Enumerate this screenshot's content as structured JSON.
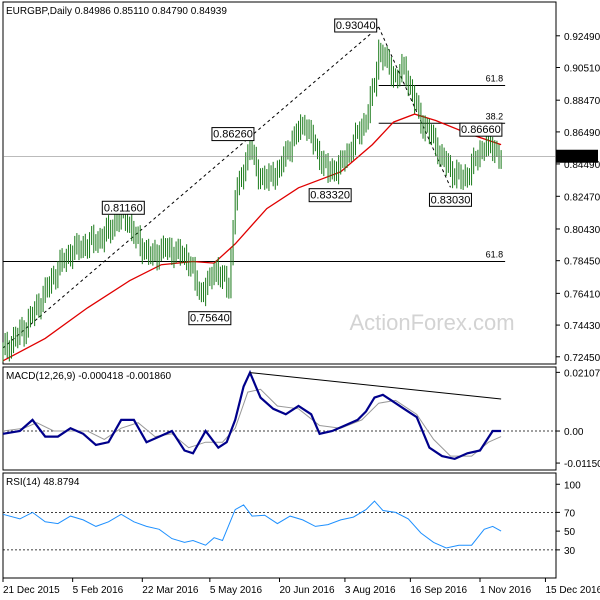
{
  "chart_data": {
    "type": "candlestick",
    "price_panel": {
      "title": "EURGBP,Daily  0.84986 0.85110 0.84790 0.84939",
      "ylim": [
        0.72,
        0.946
      ],
      "y_ticks": [
        "0.92490",
        "0.90510",
        "0.88470",
        "0.86490",
        "0.84490",
        "0.82470",
        "0.80430",
        "0.78450",
        "0.76410",
        "0.74430",
        "0.72450"
      ],
      "current_price": "0.84939",
      "close_path": [
        [
          0,
          0.728
        ],
        [
          10,
          0.742
        ],
        [
          18,
          0.76
        ],
        [
          26,
          0.78
        ],
        [
          32,
          0.79
        ],
        [
          40,
          0.795
        ],
        [
          48,
          0.8
        ],
        [
          54,
          0.81
        ],
        [
          58,
          0.813
        ],
        [
          62,
          0.8
        ],
        [
          66,
          0.793
        ],
        [
          70,
          0.787
        ],
        [
          76,
          0.792
        ],
        [
          82,
          0.79
        ],
        [
          88,
          0.785
        ],
        [
          93,
          0.764
        ],
        [
          97,
          0.77
        ],
        [
          101,
          0.78
        ],
        [
          104,
          0.773
        ],
        [
          107,
          0.768
        ],
        [
          110,
          0.825
        ],
        [
          113,
          0.836
        ],
        [
          117,
          0.858
        ],
        [
          120,
          0.84
        ],
        [
          125,
          0.835
        ],
        [
          131,
          0.842
        ],
        [
          137,
          0.86
        ],
        [
          143,
          0.871
        ],
        [
          148,
          0.855
        ],
        [
          154,
          0.84
        ],
        [
          160,
          0.844
        ],
        [
          166,
          0.858
        ],
        [
          172,
          0.873
        ],
        [
          176,
          0.895
        ],
        [
          178,
          0.916
        ],
        [
          182,
          0.908
        ],
        [
          186,
          0.898
        ],
        [
          190,
          0.905
        ],
        [
          194,
          0.888
        ],
        [
          198,
          0.872
        ],
        [
          204,
          0.86
        ],
        [
          208,
          0.848
        ],
        [
          213,
          0.84
        ],
        [
          218,
          0.835
        ],
        [
          223,
          0.845
        ],
        [
          228,
          0.857
        ],
        [
          233,
          0.854
        ],
        [
          236,
          0.849
        ]
      ],
      "ma_path": [
        [
          0,
          0.722
        ],
        [
          20,
          0.736
        ],
        [
          40,
          0.755
        ],
        [
          60,
          0.772
        ],
        [
          75,
          0.782
        ],
        [
          90,
          0.784
        ],
        [
          100,
          0.783
        ],
        [
          110,
          0.795
        ],
        [
          125,
          0.817
        ],
        [
          140,
          0.83
        ],
        [
          160,
          0.84
        ],
        [
          175,
          0.857
        ],
        [
          185,
          0.871
        ],
        [
          195,
          0.876
        ],
        [
          205,
          0.872
        ],
        [
          220,
          0.864
        ],
        [
          236,
          0.857
        ]
      ],
      "swing_labels": [
        {
          "text": "0.93040",
          "x": 178,
          "y": 0.9304
        },
        {
          "text": "0.86260",
          "x": 117,
          "y": 0.8626
        },
        {
          "text": "0.83320",
          "x": 155,
          "y": 0.8332
        },
        {
          "text": "0.86660",
          "x": 225,
          "y": 0.8666
        },
        {
          "text": "0.83030",
          "x": 212,
          "y": 0.8303
        },
        {
          "text": "0.81160",
          "x": 57,
          "y": 0.8116
        },
        {
          "text": "0.75640",
          "x": 98,
          "y": 0.7564
        }
      ],
      "fib_levels": [
        {
          "text": "61.8",
          "price": 0.8939,
          "x0": 178,
          "x1": 236
        },
        {
          "text": "38.2",
          "price": 0.8703,
          "x0": 178,
          "x1": 236
        },
        {
          "text": "61.8",
          "price": 0.784,
          "x0": 0,
          "x1": 236
        }
      ],
      "trendlines": [
        {
          "from": [
            0,
            0.73
          ],
          "to": [
            178,
            0.9304
          ]
        },
        {
          "from": [
            178,
            0.9304
          ],
          "to": [
            212,
            0.8303
          ]
        }
      ]
    },
    "macd_panel": {
      "label": "MACD(12,26,9) -0.000418 -0.001860",
      "ylim": [
        -0.014,
        0.023
      ],
      "y_ticks": [
        "0.021074",
        "0.00",
        "-0.011507"
      ],
      "macd_path": [
        [
          0,
          -0.001
        ],
        [
          8,
          0.0
        ],
        [
          14,
          0.004
        ],
        [
          20,
          -0.002
        ],
        [
          26,
          -0.002
        ],
        [
          32,
          0.001
        ],
        [
          38,
          -0.001
        ],
        [
          44,
          -0.005
        ],
        [
          50,
          -0.004
        ],
        [
          56,
          0.004
        ],
        [
          62,
          0.004
        ],
        [
          68,
          -0.004
        ],
        [
          74,
          -0.002
        ],
        [
          80,
          0.0
        ],
        [
          86,
          -0.007
        ],
        [
          90,
          -0.008
        ],
        [
          96,
          0.0
        ],
        [
          102,
          -0.006
        ],
        [
          106,
          -0.004
        ],
        [
          110,
          0.004
        ],
        [
          114,
          0.016
        ],
        [
          117,
          0.021
        ],
        [
          122,
          0.012
        ],
        [
          128,
          0.008
        ],
        [
          134,
          0.006
        ],
        [
          140,
          0.009
        ],
        [
          146,
          0.006
        ],
        [
          150,
          -0.001
        ],
        [
          156,
          0.0
        ],
        [
          162,
          0.002
        ],
        [
          168,
          0.004
        ],
        [
          172,
          0.007
        ],
        [
          176,
          0.012
        ],
        [
          180,
          0.013
        ],
        [
          186,
          0.01
        ],
        [
          190,
          0.008
        ],
        [
          196,
          0.005
        ],
        [
          202,
          -0.006
        ],
        [
          208,
          -0.009
        ],
        [
          214,
          -0.01
        ],
        [
          220,
          -0.008
        ],
        [
          226,
          -0.007
        ],
        [
          232,
          0.0
        ],
        [
          236,
          0.0
        ]
      ],
      "signal_path": [
        [
          0,
          0.0
        ],
        [
          10,
          0.001
        ],
        [
          16,
          0.003
        ],
        [
          24,
          0.0
        ],
        [
          32,
          0.0
        ],
        [
          40,
          0.0
        ],
        [
          48,
          -0.003
        ],
        [
          56,
          0.001
        ],
        [
          64,
          0.003
        ],
        [
          72,
          -0.002
        ],
        [
          80,
          -0.001
        ],
        [
          88,
          -0.006
        ],
        [
          96,
          -0.004
        ],
        [
          104,
          -0.004
        ],
        [
          110,
          0.001
        ],
        [
          116,
          0.014
        ],
        [
          122,
          0.015
        ],
        [
          130,
          0.009
        ],
        [
          140,
          0.008
        ],
        [
          150,
          0.002
        ],
        [
          160,
          0.001
        ],
        [
          170,
          0.004
        ],
        [
          178,
          0.01
        ],
        [
          186,
          0.011
        ],
        [
          196,
          0.006
        ],
        [
          204,
          -0.003
        ],
        [
          212,
          -0.009
        ],
        [
          222,
          -0.009
        ],
        [
          230,
          -0.004
        ],
        [
          236,
          -0.002
        ]
      ],
      "trendline": {
        "from": [
          117,
          0.021
        ],
        "to": [
          236,
          0.0115
        ]
      }
    },
    "rsi_panel": {
      "label": "RSI(14) 48.8794",
      "ylim": [
        0,
        112
      ],
      "y_ticks": [
        "100",
        "70",
        "50",
        "30"
      ],
      "rsi_path": [
        [
          0,
          68
        ],
        [
          8,
          63
        ],
        [
          14,
          70
        ],
        [
          20,
          60
        ],
        [
          26,
          58
        ],
        [
          32,
          66
        ],
        [
          38,
          62
        ],
        [
          44,
          55
        ],
        [
          50,
          60
        ],
        [
          56,
          68
        ],
        [
          62,
          60
        ],
        [
          68,
          55
        ],
        [
          74,
          52
        ],
        [
          80,
          42
        ],
        [
          86,
          38
        ],
        [
          90,
          40
        ],
        [
          96,
          35
        ],
        [
          100,
          43
        ],
        [
          104,
          40
        ],
        [
          110,
          73
        ],
        [
          114,
          78
        ],
        [
          118,
          66
        ],
        [
          124,
          67
        ],
        [
          130,
          58
        ],
        [
          136,
          66
        ],
        [
          142,
          62
        ],
        [
          148,
          55
        ],
        [
          154,
          57
        ],
        [
          160,
          62
        ],
        [
          166,
          65
        ],
        [
          172,
          73
        ],
        [
          176,
          82
        ],
        [
          180,
          72
        ],
        [
          186,
          70
        ],
        [
          192,
          63
        ],
        [
          198,
          48
        ],
        [
          204,
          38
        ],
        [
          210,
          32
        ],
        [
          216,
          35
        ],
        [
          222,
          35
        ],
        [
          228,
          52
        ],
        [
          232,
          55
        ],
        [
          236,
          50
        ]
      ]
    },
    "x_ticks": [
      {
        "label": "21 Dec 2015",
        "x": 0
      },
      {
        "label": "5 Feb 2016",
        "x": 33
      },
      {
        "label": "22 Mar 2016",
        "x": 66
      },
      {
        "label": "5 May 2016",
        "x": 98
      },
      {
        "label": "20 Jun 2016",
        "x": 131
      },
      {
        "label": "3 Aug 2016",
        "x": 162
      },
      {
        "label": "16 Sep 2016",
        "x": 193
      },
      {
        "label": "1 Nov 2016",
        "x": 226
      },
      {
        "label": "15 Dec 2016",
        "x": 257
      }
    ],
    "watermark": "ActionForex.com"
  }
}
